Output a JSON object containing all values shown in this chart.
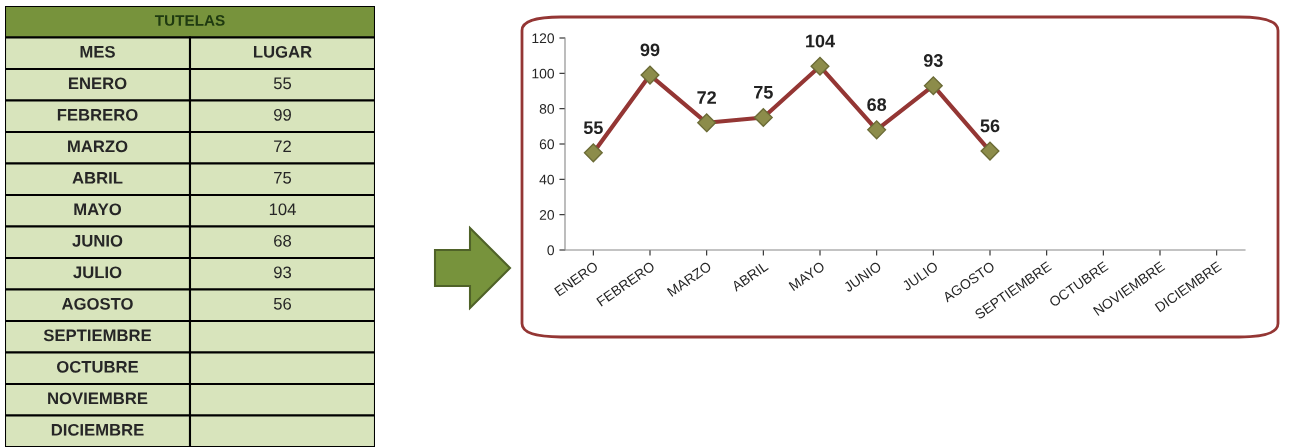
{
  "chart_data": [
    {
      "type": "other",
      "title": "TUTELAS",
      "annotations": [
        "MES",
        "LUGAR"
      ],
      "categories": [
        "ENERO",
        "FEBRERO",
        "MARZO",
        "ABRIL",
        "MAYO",
        "JUNIO",
        "JULIO",
        "AGOSTO",
        "SEPTIEMBRE",
        "OCTUBRE",
        "NOVIEMBRE",
        "DICIEMBRE"
      ],
      "values": [
        55,
        99,
        72,
        75,
        104,
        68,
        93,
        56,
        null,
        null,
        null,
        null
      ],
      "data_labels": true
    },
    {
      "type": "line",
      "categories": [
        "ENERO",
        "FEBRERO",
        "MARZO",
        "ABRIL",
        "MAYO",
        "JUNIO",
        "JULIO",
        "AGOSTO",
        "SEPTIEMBRE",
        "OCTUBRE",
        "NOVIEMBRE",
        "DICIEMBRE"
      ],
      "series": [
        {
          "color": "#943634",
          "values": [
            55,
            99,
            72,
            75,
            104,
            68,
            93,
            56,
            null,
            null,
            null,
            null
          ]
        }
      ],
      "marker": "diamond",
      "data_labels": true,
      "grid": false,
      "legend": false,
      "ylim": [
        0,
        120
      ],
      "yticks": [
        0,
        20,
        40,
        60,
        80,
        100,
        120
      ]
    }
  ]
}
